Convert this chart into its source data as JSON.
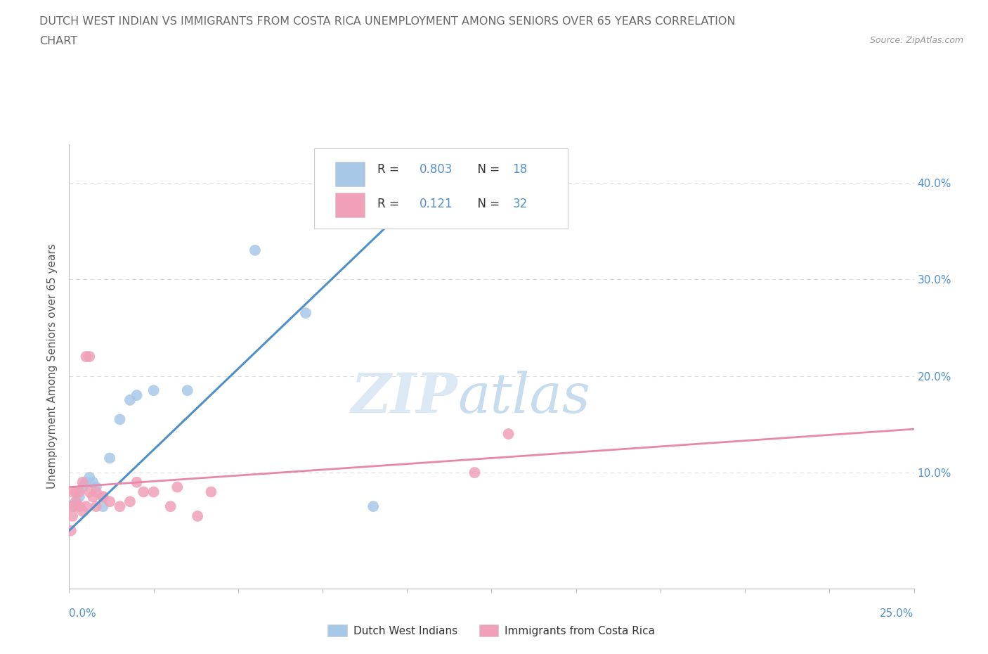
{
  "title_line1": "DUTCH WEST INDIAN VS IMMIGRANTS FROM COSTA RICA UNEMPLOYMENT AMONG SENIORS OVER 65 YEARS CORRELATION",
  "title_line2": "CHART",
  "source": "Source: ZipAtlas.com",
  "ylabel": "Unemployment Among Seniors over 65 years",
  "blue_R": 0.803,
  "blue_N": 18,
  "pink_R": 0.121,
  "pink_N": 32,
  "blue_color": "#A8C8E8",
  "pink_color": "#F0A0B8",
  "blue_line_color": "#5090C8",
  "pink_line_color": "#E888A8",
  "legend_blue_label": "Dutch West Indians",
  "legend_pink_label": "Immigrants from Costa Rica",
  "blue_x": [
    0.001,
    0.002,
    0.003,
    0.004,
    0.005,
    0.006,
    0.007,
    0.008,
    0.01,
    0.012,
    0.015,
    0.018,
    0.02,
    0.025,
    0.035,
    0.055,
    0.07,
    0.09
  ],
  "blue_y": [
    0.065,
    0.07,
    0.075,
    0.085,
    0.09,
    0.095,
    0.09,
    0.085,
    0.065,
    0.115,
    0.155,
    0.175,
    0.18,
    0.185,
    0.185,
    0.33,
    0.265,
    0.065
  ],
  "pink_x": [
    0.0005,
    0.001,
    0.001,
    0.001,
    0.002,
    0.002,
    0.002,
    0.003,
    0.003,
    0.004,
    0.004,
    0.005,
    0.005,
    0.006,
    0.006,
    0.007,
    0.008,
    0.008,
    0.01,
    0.01,
    0.012,
    0.015,
    0.018,
    0.02,
    0.022,
    0.025,
    0.03,
    0.032,
    0.038,
    0.042,
    0.12,
    0.13
  ],
  "pink_y": [
    0.04,
    0.055,
    0.065,
    0.08,
    0.065,
    0.07,
    0.08,
    0.065,
    0.08,
    0.09,
    0.06,
    0.065,
    0.22,
    0.22,
    0.08,
    0.075,
    0.08,
    0.065,
    0.075,
    0.075,
    0.07,
    0.065,
    0.07,
    0.09,
    0.08,
    0.08,
    0.065,
    0.085,
    0.055,
    0.08,
    0.1,
    0.14
  ],
  "xlim": [
    0.0,
    0.25
  ],
  "ylim": [
    -0.02,
    0.44
  ],
  "blue_trend_x0": 0.0,
  "blue_trend_y0": 0.04,
  "blue_trend_x1": 0.115,
  "blue_trend_y1": 0.425,
  "pink_trend_x0": 0.0,
  "pink_trend_y0": 0.085,
  "pink_trend_x1": 0.25,
  "pink_trend_y1": 0.145,
  "ytick_vals": [
    0.1,
    0.2,
    0.3,
    0.4
  ],
  "ytick_labels": [
    "10.0%",
    "20.0%",
    "30.0%",
    "40.0%"
  ],
  "xtick_vals": [
    0.0,
    0.025,
    0.05,
    0.075,
    0.1,
    0.125,
    0.15,
    0.175,
    0.2,
    0.225,
    0.25
  ],
  "bg_color": "#FFFFFF",
  "grid_color": "#DDDDDD",
  "title_color": "#666666",
  "axis_label_color": "#5090C8",
  "stat_color": "#5090C8",
  "watermark_zip_color": "#DDE8F5",
  "watermark_atlas_color": "#C8DCF0"
}
